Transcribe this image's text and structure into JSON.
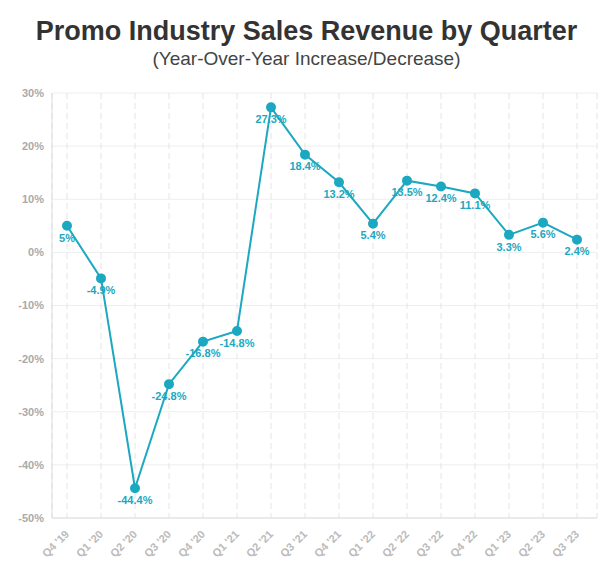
{
  "chart_data": {
    "type": "line",
    "title": "Promo Industry Sales Revenue by Quarter",
    "subtitle": "(Year-Over-Year Increase/Decrease)",
    "categories": [
      "Q4 '19",
      "Q1 '20",
      "Q2 '20",
      "Q3 '20",
      "Q4 '20",
      "Q1 '21",
      "Q2 '21",
      "Q3 '21",
      "Q4 '21",
      "Q1 '22",
      "Q2 '22",
      "Q3 '22",
      "Q4 '22",
      "Q1 '23",
      "Q2 '23",
      "Q3 '23"
    ],
    "values": [
      5,
      -4.9,
      -44.4,
      -24.8,
      -16.8,
      -14.8,
      27.3,
      18.4,
      13.2,
      5.4,
      13.5,
      12.4,
      11.1,
      3.3,
      5.6,
      2.4
    ],
    "value_labels": [
      "5%",
      "-4.9%",
      "-44.4%",
      "-24.8%",
      "-16.8%",
      "-14.8%",
      "27.3%",
      "18.4%",
      "13.2%",
      "5.4%",
      "13.5%",
      "12.4%",
      "11.1%",
      "3.3%",
      "5.6%",
      "2.4%"
    ],
    "color": "#1ba8c0",
    "ylim": [
      -50,
      30
    ],
    "yticks": [
      {
        "value": -50,
        "label": "-50%"
      },
      {
        "value": -40,
        "label": "-40%"
      },
      {
        "value": -30,
        "label": "-30%"
      },
      {
        "value": -20,
        "label": "-20%"
      },
      {
        "value": -10,
        "label": "-10%"
      },
      {
        "value": 0,
        "label": "0%"
      },
      {
        "value": 10,
        "label": "10%"
      },
      {
        "value": 20,
        "label": "20%"
      },
      {
        "value": 30,
        "label": "30%"
      }
    ],
    "grid": true,
    "data_labels": true,
    "marker": "circle"
  }
}
